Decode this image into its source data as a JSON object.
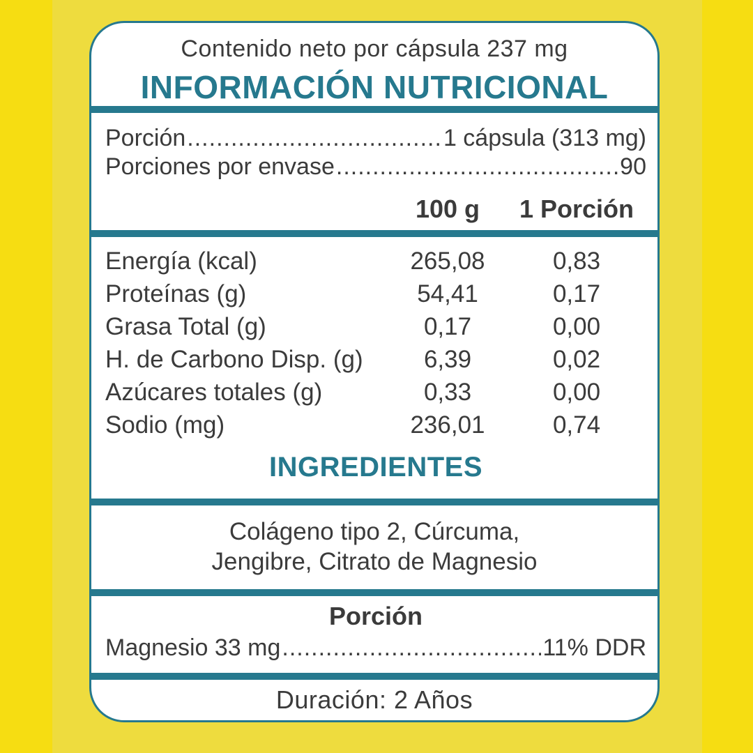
{
  "colors": {
    "teal_accent": "#26798E",
    "text": "#3B3B3B",
    "background_edge_yellow": "#F6DD12",
    "background_center_yellow": "#EEDC3E",
    "card_background": "#FFFFFF"
  },
  "header": {
    "net_content": "Contenido neto por cápsula 237 mg",
    "title": "INFORMACIÓN NUTRICIONAL"
  },
  "leaders": {
    "dots": "................................................................................"
  },
  "serving": {
    "portion_label": "Porción",
    "portion_value": "1 cápsula (313 mg)",
    "servings_label": "Porciones por envase",
    "servings_value": "90"
  },
  "table": {
    "col1_header": "100 g",
    "col2_header": "1 Porción",
    "rows": [
      {
        "label": "Energía (kcal)",
        "per100": "265,08",
        "per_serving": "0,83"
      },
      {
        "label": "Proteínas (g)",
        "per100": "54,41",
        "per_serving": "0,17"
      },
      {
        "label": "Grasa Total (g)",
        "per100": "0,17",
        "per_serving": "0,00"
      },
      {
        "label": "H. de Carbono Disp. (g)",
        "per100": "6,39",
        "per_serving": "0,02"
      },
      {
        "label": "Azúcares totales (g)",
        "per100": "0,33",
        "per_serving": "0,00"
      },
      {
        "label": "Sodio (mg)",
        "per100": "236,01",
        "per_serving": "0,74"
      }
    ]
  },
  "ingredients": {
    "title": "INGREDIENTES",
    "line1": "Colágeno tipo 2, Cúrcuma,",
    "line2": "Jengibre, Citrato de Magnesio"
  },
  "daily_reference": {
    "title": "Porción",
    "item_label": "Magnesio 33 mg",
    "item_value": "11% DDR"
  },
  "footer": {
    "duration": "Duración: 2 Años"
  }
}
